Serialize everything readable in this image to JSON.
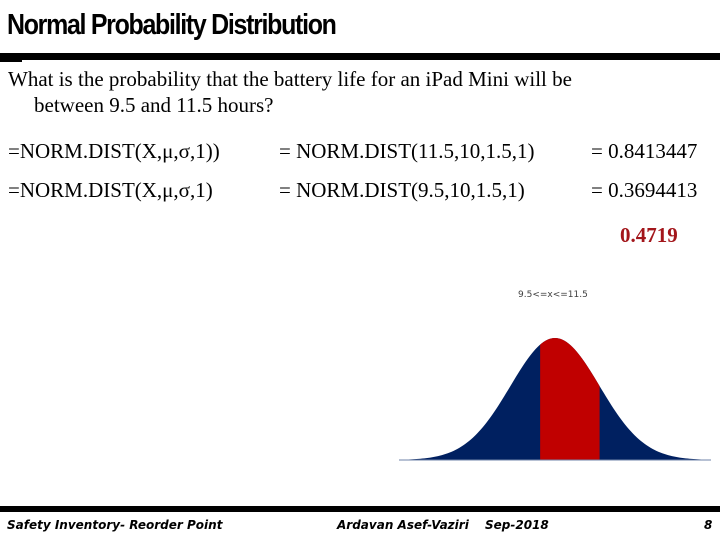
{
  "slide": {
    "title": "Normal Probability Distribution",
    "question_line1": "What is the probability that the battery life for an iPad Mini will be",
    "question_line2": "between 9.5 and 11.5 hours?",
    "rows": [
      {
        "generic": "=NORM.DIST(X,μ,σ,1))",
        "specific": "= NORM.DIST(11.5,10,1.5,1)",
        "result": "= 0.8413447"
      },
      {
        "generic": "=NORM.DIST(X,μ,σ,1)",
        "specific": "= NORM.DIST(9.5,10,1.5,1)",
        "result": "= 0.3694413"
      }
    ],
    "difference": "0.4719",
    "difference_color": "#a3161b"
  },
  "chart_data": {
    "type": "area",
    "title": "9.5<=x<=11.5",
    "distribution": "normal",
    "mean": 10,
    "std_dev": 1.5,
    "shaded_range": [
      9.5,
      11.5
    ],
    "shaded_probability": 0.4719,
    "colors": {
      "tails": "#002060",
      "shaded": "#c00000"
    },
    "xlabel": "",
    "ylabel": "",
    "grid": false,
    "legend": false
  },
  "footer": {
    "left": "Safety Inventory- Reorder Point",
    "author": "Ardavan Asef-Vaziri",
    "date": "Sep-2018",
    "page": "8"
  }
}
